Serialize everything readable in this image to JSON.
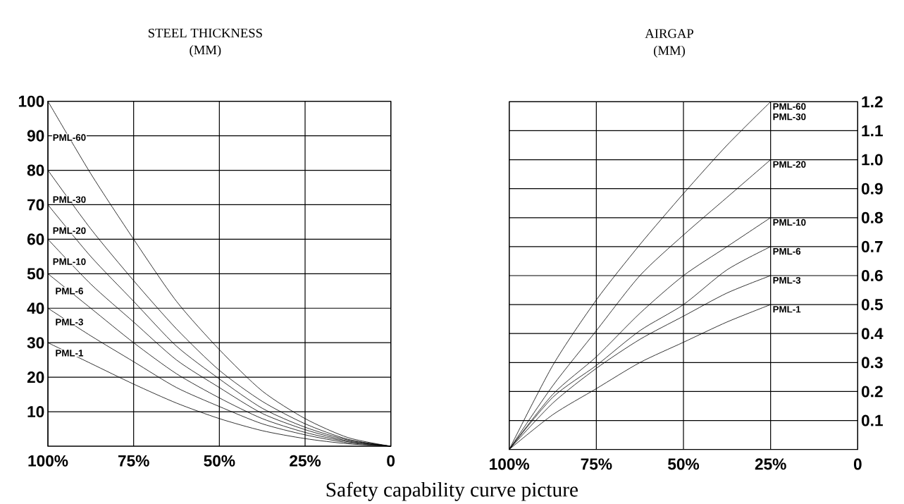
{
  "chart_data": [
    {
      "type": "line",
      "title": "STEEL THICKNESS",
      "subtitle": "(MM)",
      "x": [
        100,
        87.5,
        75,
        62.5,
        50,
        37.5,
        25,
        12.5,
        0
      ],
      "series": [
        {
          "name": "PML-60",
          "color": "#000000",
          "values": [
            100,
            79,
            60,
            42,
            28,
            16,
            8,
            2.5,
            0
          ]
        },
        {
          "name": "PML-30",
          "color": "#000000",
          "values": [
            80,
            63,
            48,
            34,
            22,
            13,
            6.5,
            2,
            0
          ]
        },
        {
          "name": "PML-20",
          "color": "#000000",
          "values": [
            70,
            55,
            42,
            29,
            19.5,
            11,
            5.5,
            1.8,
            0
          ]
        },
        {
          "name": "PML-10",
          "color": "#000000",
          "values": [
            60,
            47,
            36,
            25,
            17,
            9.5,
            4.8,
            1.5,
            0
          ]
        },
        {
          "name": "PML-6",
          "color": "#000000",
          "values": [
            50,
            40,
            30,
            21,
            14,
            8,
            4,
            1.3,
            0
          ]
        },
        {
          "name": "PML-3",
          "color": "#000000",
          "values": [
            40,
            32,
            24.5,
            17,
            11.5,
            6.5,
            3.3,
            1,
            0
          ]
        },
        {
          "name": "PML-1",
          "color": "#000000",
          "values": [
            30,
            24,
            18,
            12.5,
            8,
            4.5,
            2.2,
            0.7,
            0
          ]
        }
      ],
      "xlim": [
        100,
        0
      ],
      "ylim": [
        0,
        100
      ],
      "xticks": [
        {
          "value": 100,
          "label": "100%"
        },
        {
          "value": 75,
          "label": "75%"
        },
        {
          "value": 50,
          "label": "50%"
        },
        {
          "value": 25,
          "label": "25%"
        },
        0
      ],
      "yticks": [
        10,
        20,
        30,
        40,
        50,
        60,
        70,
        80,
        90,
        100
      ],
      "grid": true,
      "marker": "none",
      "line_style": "solid",
      "annotations": [
        "Safety capability curve picture"
      ]
    },
    {
      "type": "line",
      "title": "AIRGAP",
      "subtitle": "(MM)",
      "x": [
        100,
        87.5,
        75,
        62.5,
        50,
        37.5,
        25
      ],
      "series": [
        {
          "name": "PML-60",
          "color": "#000000",
          "values": [
            0,
            0.29,
            0.516,
            0.707,
            0.883,
            1.05,
            1.2
          ]
        },
        {
          "name": "PML-20",
          "color": "#000000",
          "values": [
            0,
            0.22,
            0.41,
            0.6,
            0.74,
            0.87,
            1.0
          ]
        },
        {
          "name": "PML-10",
          "color": "#000000",
          "values": [
            0,
            0.19,
            0.32,
            0.47,
            0.6,
            0.7,
            0.8
          ]
        },
        {
          "name": "PML-6",
          "color": "#000000",
          "values": [
            0,
            0.18,
            0.29,
            0.41,
            0.5,
            0.62,
            0.7
          ]
        },
        {
          "name": "PML-3",
          "color": "#000000",
          "values": [
            0,
            0.16,
            0.28,
            0.38,
            0.46,
            0.54,
            0.6
          ]
        },
        {
          "name": "PML-1",
          "color": "#000000",
          "values": [
            0,
            0.12,
            0.21,
            0.3,
            0.37,
            0.44,
            0.5
          ]
        }
      ],
      "xlim": [
        100,
        0
      ],
      "ylim": [
        0,
        1.2
      ],
      "xticks": [
        {
          "value": 100,
          "label": "100%"
        },
        {
          "value": 75,
          "label": "75%"
        },
        {
          "value": 50,
          "label": "50%"
        },
        {
          "value": 25,
          "label": "25%"
        },
        0
      ],
      "yticks": [
        0.1,
        0.2,
        0.3,
        0.4,
        0.5,
        0.6,
        0.7,
        0.8,
        0.9,
        {
          "value": 1,
          "label": "1.0"
        },
        1.1,
        1.2
      ],
      "grid": true,
      "marker": "none",
      "line_style": "solid",
      "annotations": [
        {
          "text": "PML-30",
          "x": 25,
          "y": 1.2
        }
      ]
    }
  ]
}
